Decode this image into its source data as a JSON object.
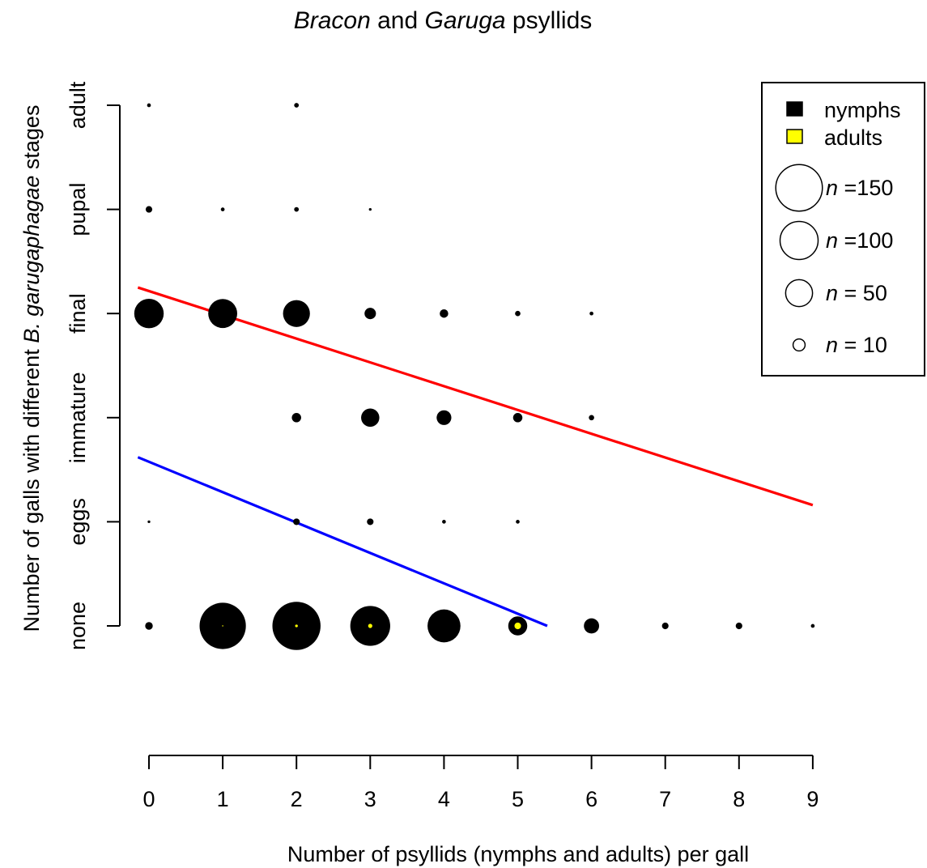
{
  "title": {
    "part1": "Bracon",
    "part2": " and ",
    "part3": "Garuga",
    "part4": " psyllids"
  },
  "xlabel": "Number of psyllids (nymphs and adults) per gall",
  "ylabel": {
    "part1": "Number of galls with different ",
    "part2": "B. garugaphagae",
    "part3": " stages"
  },
  "chart_data": {
    "type": "scatter",
    "x_ticks": [
      0,
      1,
      2,
      3,
      4,
      5,
      6,
      7,
      8,
      9
    ],
    "xlim": [
      0,
      9
    ],
    "y_categories": [
      "none",
      "eggs",
      "immature",
      "final",
      "pupal",
      "adult"
    ],
    "bubble_size_variable": "n",
    "series": [
      {
        "name": "nymphs",
        "color": "#000000",
        "points": [
          {
            "x": 0,
            "y": "adult",
            "n": 1
          },
          {
            "x": 2,
            "y": "adult",
            "n": 1.5
          },
          {
            "x": 0,
            "y": "pupal",
            "n": 3
          },
          {
            "x": 1,
            "y": "pupal",
            "n": 1
          },
          {
            "x": 2,
            "y": "pupal",
            "n": 1.5
          },
          {
            "x": 3,
            "y": "pupal",
            "n": 0.5
          },
          {
            "x": 0,
            "y": "final",
            "n": 60
          },
          {
            "x": 1,
            "y": "final",
            "n": 58
          },
          {
            "x": 2,
            "y": "final",
            "n": 50
          },
          {
            "x": 3,
            "y": "final",
            "n": 9
          },
          {
            "x": 4,
            "y": "final",
            "n": 5
          },
          {
            "x": 5,
            "y": "final",
            "n": 2
          },
          {
            "x": 6,
            "y": "final",
            "n": 1
          },
          {
            "x": 2,
            "y": "immature",
            "n": 6
          },
          {
            "x": 3,
            "y": "immature",
            "n": 23
          },
          {
            "x": 4,
            "y": "immature",
            "n": 15
          },
          {
            "x": 5,
            "y": "immature",
            "n": 6
          },
          {
            "x": 6,
            "y": "immature",
            "n": 2
          },
          {
            "x": 0,
            "y": "eggs",
            "n": 0.5
          },
          {
            "x": 2,
            "y": "eggs",
            "n": 3
          },
          {
            "x": 3,
            "y": "eggs",
            "n": 3
          },
          {
            "x": 4,
            "y": "eggs",
            "n": 1
          },
          {
            "x": 5,
            "y": "eggs",
            "n": 1
          },
          {
            "x": 0,
            "y": "none",
            "n": 4
          },
          {
            "x": 1,
            "y": "none",
            "n": 148
          },
          {
            "x": 2,
            "y": "none",
            "n": 160
          },
          {
            "x": 3,
            "y": "none",
            "n": 110
          },
          {
            "x": 4,
            "y": "none",
            "n": 75
          },
          {
            "x": 5,
            "y": "none",
            "n": 25
          },
          {
            "x": 6,
            "y": "none",
            "n": 16
          },
          {
            "x": 7,
            "y": "none",
            "n": 3
          },
          {
            "x": 8,
            "y": "none",
            "n": 3
          },
          {
            "x": 9,
            "y": "none",
            "n": 1
          }
        ]
      },
      {
        "name": "adults",
        "color": "#ffff00",
        "points": [
          {
            "x": 1,
            "y": "none",
            "n": 0.1
          },
          {
            "x": 2,
            "y": "none",
            "n": 0.5
          },
          {
            "x": 3,
            "y": "none",
            "n": 1.2
          },
          {
            "x": 5,
            "y": "none",
            "n": 3
          }
        ]
      }
    ],
    "trend_lines": [
      {
        "color": "#ff0000",
        "from": {
          "x": -0.15,
          "y": 3.25
        },
        "to": {
          "x": 9,
          "y": 1.16
        }
      },
      {
        "color": "#0000ff",
        "from": {
          "x": -0.15,
          "y": 1.62
        },
        "to": {
          "x": 5.4,
          "y": 0
        }
      }
    ],
    "legend": {
      "placement": "top-right",
      "color_entries": [
        {
          "label": "nymphs",
          "color": "#000000"
        },
        {
          "label": "adults",
          "color": "#ffff00"
        }
      ],
      "size_entries": [
        {
          "n": 150,
          "prefix": "n",
          "suffix": " =150"
        },
        {
          "n": 100,
          "prefix": "n",
          "suffix": " =100"
        },
        {
          "n": 50,
          "prefix": "n",
          "suffix": " = 50"
        },
        {
          "n": 10,
          "prefix": "n",
          "suffix": " = 10"
        }
      ]
    }
  }
}
